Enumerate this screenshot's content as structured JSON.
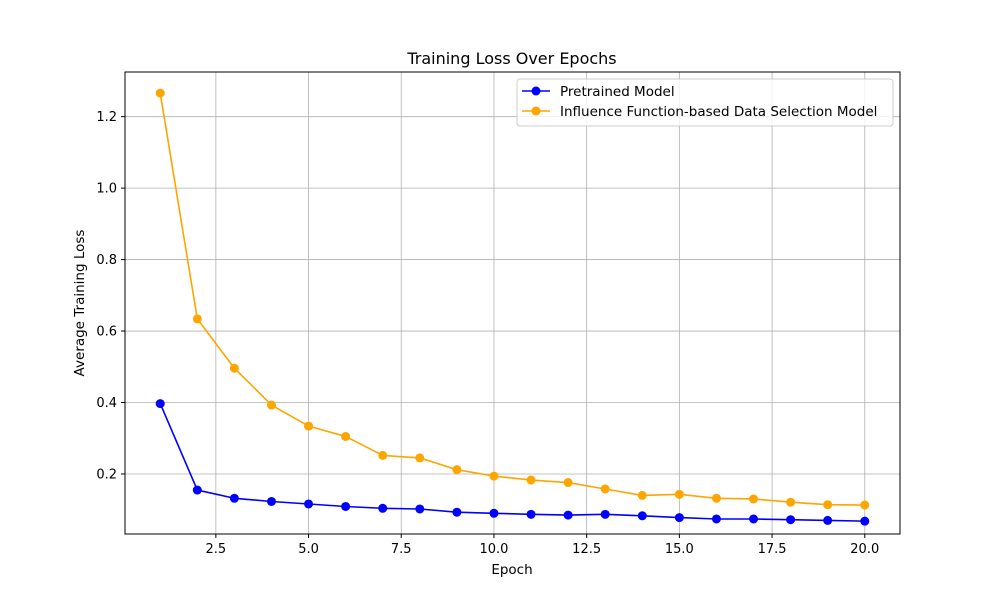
{
  "chart_data": {
    "type": "line",
    "title": "Training Loss Over Epochs",
    "xlabel": "Epoch",
    "ylabel": "Average Training Loss",
    "xlim": [
      0.05,
      20.95
    ],
    "ylim": [
      0.032,
      1.325
    ],
    "xticks": [
      2.5,
      5.0,
      7.5,
      10.0,
      12.5,
      15.0,
      17.5,
      20.0
    ],
    "xtick_labels": [
      "2.5",
      "5.0",
      "7.5",
      "10.0",
      "12.5",
      "15.0",
      "17.5",
      "20.0"
    ],
    "yticks": [
      0.2,
      0.4,
      0.6,
      0.8,
      1.0,
      1.2
    ],
    "ytick_labels": [
      "0.2",
      "0.4",
      "0.6",
      "0.8",
      "1.0",
      "1.2"
    ],
    "grid": true,
    "legend_position": "top-right",
    "x": [
      1,
      2,
      3,
      4,
      5,
      6,
      7,
      8,
      9,
      10,
      11,
      12,
      13,
      14,
      15,
      16,
      17,
      18,
      19,
      20
    ],
    "series": [
      {
        "name": "Pretrained Model",
        "color": "#0000ff",
        "values": [
          0.397,
          0.155,
          0.132,
          0.123,
          0.116,
          0.109,
          0.104,
          0.102,
          0.093,
          0.09,
          0.087,
          0.085,
          0.087,
          0.083,
          0.078,
          0.074,
          0.074,
          0.072,
          0.07,
          0.068
        ]
      },
      {
        "name": "Influence Function-based Data Selection Model",
        "color": "#ffa500",
        "values": [
          1.266,
          0.634,
          0.496,
          0.393,
          0.334,
          0.305,
          0.252,
          0.245,
          0.212,
          0.194,
          0.183,
          0.176,
          0.158,
          0.14,
          0.143,
          0.132,
          0.13,
          0.121,
          0.114,
          0.113
        ]
      }
    ]
  }
}
